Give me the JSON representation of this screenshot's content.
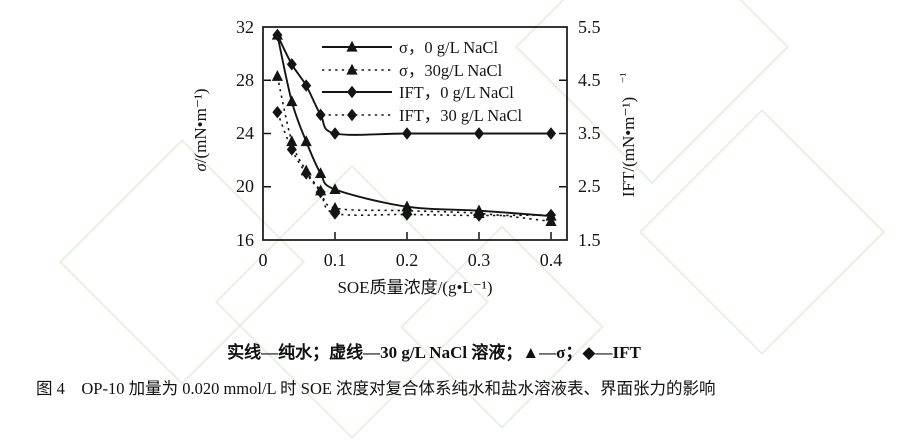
{
  "figure": {
    "legend_note": "实线—纯水；虚线—30 g/L NaCl 溶液；▲—σ；◆—IFT",
    "caption": "图 4　OP-10 加量为 0.020 mmol/L 时 SOE 浓度对复合体系纯水和盐水溶液表、界面张力的影响"
  },
  "chart_data": {
    "type": "line",
    "x_label": "SOE质量浓度/(g•L⁻¹)",
    "x_ticks": [
      "0",
      "0.1",
      "0.2",
      "0.3",
      "0.4"
    ],
    "x_tick_values": [
      0,
      0.1,
      0.2,
      0.3,
      0.4
    ],
    "x_range": [
      0,
      0.4222
    ],
    "left_axis": {
      "symbol": "σ",
      "unit": "/(mN•m⁻¹)",
      "range": [
        16,
        32
      ],
      "ticks": [
        "32",
        "28",
        "24",
        "20",
        "16"
      ],
      "tick_values": [
        32,
        28,
        24,
        20,
        16
      ],
      "minor_tick_values": [
        28,
        24,
        20
      ]
    },
    "right_axis": {
      "label": "IFT/(mN•m⁻¹)",
      "wrapped_superscript": "⁻¹",
      "range": [
        1.5,
        5.5
      ],
      "ticks": [
        "5.5",
        "4.5",
        "3.5",
        "2.5",
        "1.5"
      ],
      "tick_values": [
        5.5,
        4.5,
        3.5,
        2.5,
        1.5
      ],
      "minor_tick_values": [
        4.5,
        3.5,
        2.5
      ]
    },
    "x": [
      0.02,
      0.04,
      0.06,
      0.08,
      0.1,
      0.2,
      0.3,
      0.4
    ],
    "series": [
      {
        "name": "sigma-0",
        "label": "σ，0 g/L NaCl",
        "axis": "left",
        "line": "solid",
        "marker": "triangle",
        "values": [
          31.4,
          26.4,
          23.4,
          21.0,
          19.8,
          18.5,
          18.2,
          17.8
        ]
      },
      {
        "name": "sigma-30",
        "label": "σ，30g/L NaCl",
        "axis": "left",
        "line": "dotted",
        "marker": "triangle",
        "values": [
          28.3,
          23.4,
          21.2,
          19.7,
          18.4,
          18.2,
          18.0,
          17.4
        ]
      },
      {
        "name": "ift-0",
        "label": "IFT，0 g/L NaCl",
        "axis": "right",
        "line": "solid",
        "marker": "diamond",
        "values": [
          5.35,
          4.8,
          4.4,
          3.85,
          3.5,
          3.5,
          3.5,
          3.5
        ]
      },
      {
        "name": "ift-30",
        "label": "IFT，30 g/L NaCl",
        "axis": "right",
        "line": "dotted",
        "marker": "diamond",
        "values": [
          3.9,
          3.2,
          2.75,
          2.4,
          2.0,
          1.98,
          1.96,
          1.97
        ]
      }
    ],
    "legend_position": "top-right-inside",
    "grid": false,
    "colors": {
      "ink": "#141414",
      "watermark": "#e6f1e4"
    }
  }
}
